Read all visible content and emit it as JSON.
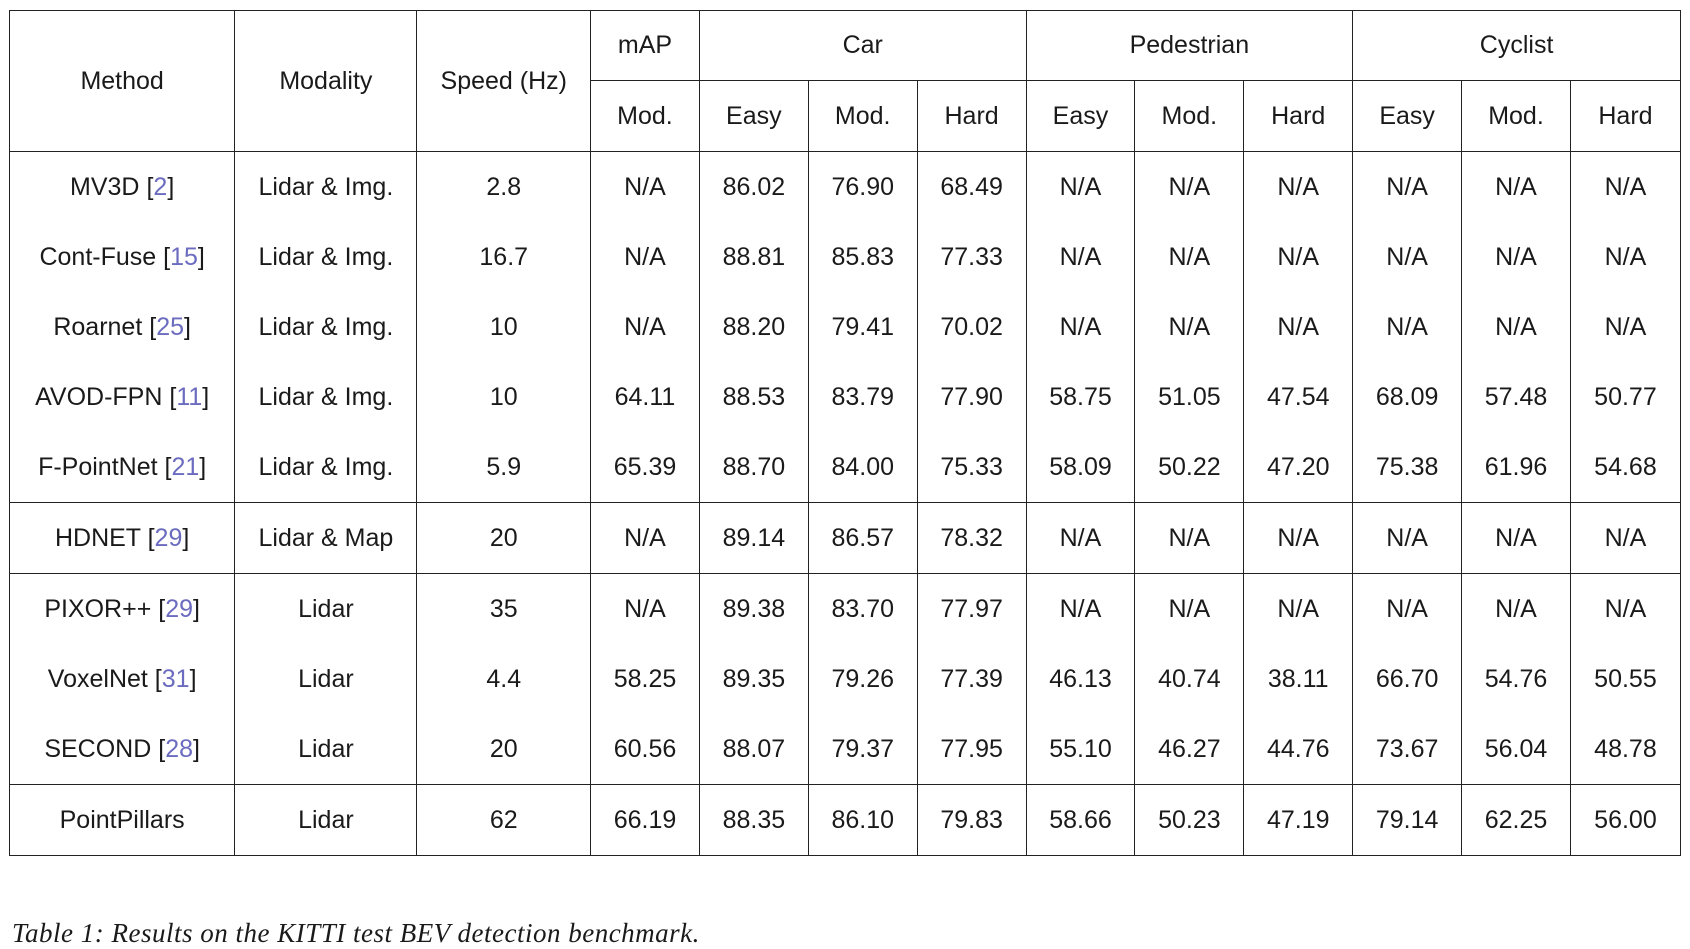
{
  "table": {
    "headers": {
      "method": "Method",
      "modality": "Modality",
      "speed": "Speed (Hz)",
      "map": "mAP",
      "car": "Car",
      "pedestrian": "Pedestrian",
      "cyclist": "Cyclist",
      "sub": [
        "Mod.",
        "Easy",
        "Mod.",
        "Hard",
        "Easy",
        "Mod.",
        "Hard",
        "Easy",
        "Mod.",
        "Hard"
      ]
    },
    "rows": [
      {
        "method": "MV3D",
        "ref": "2",
        "modality": "Lidar & Img.",
        "speed": "2.8",
        "values": [
          "N/A",
          "86.02",
          "76.90",
          "68.49",
          "N/A",
          "N/A",
          "N/A",
          "N/A",
          "N/A",
          "N/A"
        ],
        "bold": []
      },
      {
        "method": "Cont-Fuse",
        "ref": "15",
        "modality": "Lidar & Img.",
        "speed": "16.7",
        "values": [
          "N/A",
          "88.81",
          "85.83",
          "77.33",
          "N/A",
          "N/A",
          "N/A",
          "N/A",
          "N/A",
          "N/A"
        ],
        "bold": []
      },
      {
        "method": "Roarnet",
        "ref": "25",
        "modality": "Lidar & Img.",
        "speed": "10",
        "values": [
          "N/A",
          "88.20",
          "79.41",
          "70.02",
          "N/A",
          "N/A",
          "N/A",
          "N/A",
          "N/A",
          "N/A"
        ],
        "bold": []
      },
      {
        "method": "AVOD-FPN",
        "ref": "11",
        "modality": "Lidar & Img.",
        "speed": "10",
        "values": [
          "64.11",
          "88.53",
          "83.79",
          "77.90",
          "58.75",
          "51.05",
          "47.54",
          "68.09",
          "57.48",
          "50.77"
        ],
        "bold": [
          4,
          5,
          6
        ]
      },
      {
        "method": "F-PointNet",
        "ref": "21",
        "modality": "Lidar & Img.",
        "speed": "5.9",
        "values": [
          "65.39",
          "88.70",
          "84.00",
          "75.33",
          "58.09",
          "50.22",
          "47.20",
          "75.38",
          "61.96",
          "54.68"
        ],
        "bold": [],
        "group_end": true
      },
      {
        "method": "HDNET",
        "ref": "29",
        "modality": "Lidar & Map",
        "speed": "20",
        "values": [
          "N/A",
          "89.14",
          "86.57",
          "78.32",
          "N/A",
          "N/A",
          "N/A",
          "N/A",
          "N/A",
          "N/A"
        ],
        "bold": [
          2
        ],
        "group_end": true
      },
      {
        "method": "PIXOR++",
        "ref": "29",
        "modality": "Lidar",
        "speed": "35",
        "values": [
          "N/A",
          "89.38",
          "83.70",
          "77.97",
          "N/A",
          "N/A",
          "N/A",
          "N/A",
          "N/A",
          "N/A"
        ],
        "bold": [
          1
        ]
      },
      {
        "method": "VoxelNet",
        "ref": "31",
        "modality": "Lidar",
        "speed": "4.4",
        "values": [
          "58.25",
          "89.35",
          "79.26",
          "77.39",
          "46.13",
          "40.74",
          "38.11",
          "66.70",
          "54.76",
          "50.55"
        ],
        "bold": []
      },
      {
        "method": "SECOND",
        "ref": "28",
        "modality": "Lidar",
        "speed": "20",
        "values": [
          "60.56",
          "88.07",
          "79.37",
          "77.95",
          "55.10",
          "46.27",
          "44.76",
          "73.67",
          "56.04",
          "48.78"
        ],
        "bold": [],
        "group_end": true
      },
      {
        "method": "PointPillars",
        "ref": "",
        "modality": "Lidar",
        "speed": "62",
        "speed_bold": true,
        "values": [
          "66.19",
          "88.35",
          "86.10",
          "79.83",
          "58.66",
          "50.23",
          "47.19",
          "79.14",
          "62.25",
          "56.00"
        ],
        "bold": [
          0,
          3,
          7,
          8,
          9
        ]
      }
    ]
  },
  "caption": "Table 1: Results on the KITTI test BEV detection benchmark."
}
